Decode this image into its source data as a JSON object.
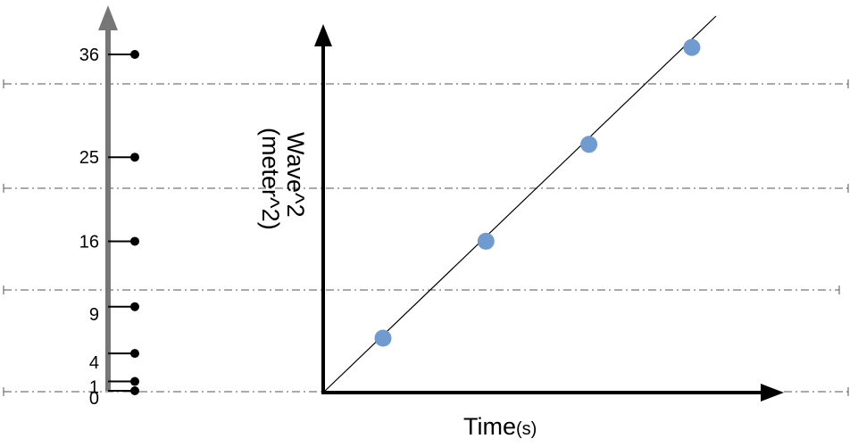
{
  "chart_data": {
    "type": "scatter",
    "title": "",
    "xlabel": "Time",
    "xlabel_unit": "(s)",
    "ylabel_line1": "Wave^2",
    "ylabel_line2": "(meter^2)",
    "points": [
      {
        "x": 1,
        "y": 4
      },
      {
        "x": 2,
        "y": 9
      },
      {
        "x": 3,
        "y": 16
      },
      {
        "x": 4,
        "y": 25
      }
    ],
    "trend_line": true,
    "reference_axis": {
      "ticks": [
        0,
        1,
        4,
        9,
        16,
        25,
        36
      ],
      "labels": [
        "0",
        "1",
        "4",
        "9",
        "16",
        "25",
        "36"
      ]
    },
    "grid": "dash-dot horizontal guides",
    "colors": {
      "point": "#6f9bd1",
      "reference_axis": "#777777",
      "guide": "#555555",
      "axis": "#000000"
    }
  }
}
